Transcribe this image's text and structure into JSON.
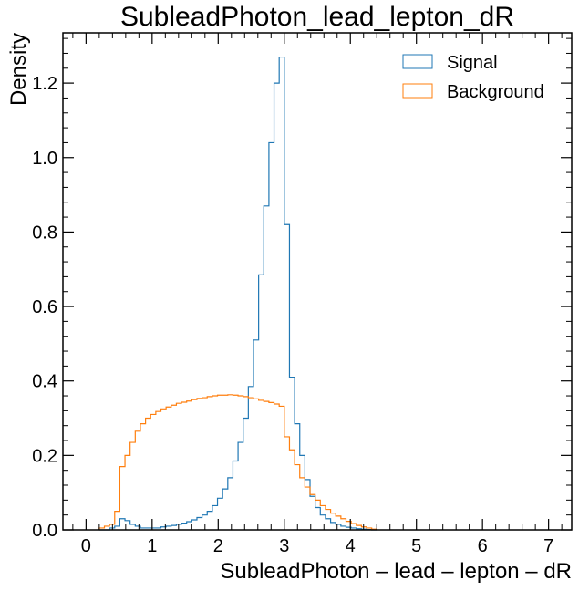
{
  "chart_data": {
    "type": "histogram-step",
    "title": "SubleadPhoton_lead_lepton_dR",
    "xlabel": "SubleadPhoton – lead – lepton – dR",
    "ylabel": "Density",
    "xlim": [
      -0.35,
      7.35
    ],
    "ylim": [
      0,
      1.335
    ],
    "x_ticks": [
      0,
      1,
      2,
      3,
      4,
      5,
      6,
      7
    ],
    "y_ticks": [
      0.0,
      0.2,
      0.4,
      0.6,
      0.8,
      1.0,
      1.2
    ],
    "x_tick_labels": [
      "0",
      "1",
      "2",
      "3",
      "4",
      "5",
      "6",
      "7"
    ],
    "y_tick_labels": [
      "0.0",
      "0.2",
      "0.4",
      "0.6",
      "0.8",
      "1.0",
      "1.2"
    ],
    "bin_start": 0.2,
    "bin_width": 0.0778,
    "legend_position": "top-right",
    "series": [
      {
        "name": "Signal",
        "color": "#1f77b4",
        "values": [
          0.0,
          0.0,
          0.005,
          0.01,
          0.03,
          0.025,
          0.015,
          0.01,
          0.005,
          0.005,
          0.005,
          0.005,
          0.008,
          0.01,
          0.012,
          0.015,
          0.018,
          0.022,
          0.027,
          0.033,
          0.04,
          0.05,
          0.065,
          0.085,
          0.11,
          0.14,
          0.185,
          0.235,
          0.3,
          0.385,
          0.51,
          0.685,
          0.87,
          1.04,
          1.2,
          1.27,
          0.82,
          0.41,
          0.285,
          0.2,
          0.135,
          0.09,
          0.06,
          0.04,
          0.03,
          0.02,
          0.015,
          0.01,
          0.007,
          0.005,
          0.003,
          0.002,
          0.001,
          0.0
        ]
      },
      {
        "name": "Background",
        "color": "#ff7f0e",
        "values": [
          0.005,
          0.01,
          0.015,
          0.05,
          0.17,
          0.2,
          0.235,
          0.265,
          0.285,
          0.3,
          0.31,
          0.318,
          0.325,
          0.33,
          0.335,
          0.34,
          0.343,
          0.346,
          0.35,
          0.353,
          0.355,
          0.358,
          0.36,
          0.362,
          0.362,
          0.363,
          0.362,
          0.36,
          0.358,
          0.355,
          0.352,
          0.348,
          0.345,
          0.342,
          0.338,
          0.332,
          0.25,
          0.215,
          0.175,
          0.14,
          0.115,
          0.095,
          0.08,
          0.065,
          0.055,
          0.045,
          0.037,
          0.03,
          0.023,
          0.017,
          0.012,
          0.008,
          0.005,
          0.002
        ]
      }
    ]
  }
}
